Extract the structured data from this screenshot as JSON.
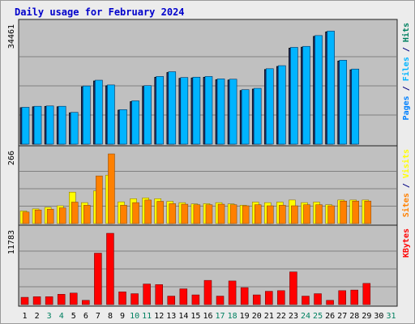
{
  "title": "Daily usage for February 2024",
  "colors": {
    "title": "#0000cc",
    "background": "#ececec",
    "plot_bg": "#c0c0c0",
    "pages": "#0080ff",
    "pages_dark": "#1a2a5a",
    "files": "#00b4ff",
    "hits": "#008060",
    "sites": "#ff8000",
    "visits": "#ffff00",
    "kbytes": "#ff0000",
    "weekend_label": "#008060"
  },
  "chart_data": {
    "type": "bar",
    "categories": [
      "1",
      "2",
      "3",
      "4",
      "5",
      "6",
      "7",
      "8",
      "9",
      "10",
      "11",
      "12",
      "13",
      "14",
      "15",
      "16",
      "17",
      "18",
      "19",
      "20",
      "21",
      "22",
      "23",
      "24",
      "25",
      "26",
      "27",
      "28",
      "29",
      "30",
      "31"
    ],
    "weekend_days": [
      "3",
      "4",
      "10",
      "11",
      "17",
      "18",
      "24",
      "25",
      "31"
    ],
    "panels": [
      {
        "id": "hits",
        "ylim": [
          0,
          34461
        ],
        "max_label": "34461",
        "legend": [
          "Pages",
          "Files",
          "Hits"
        ],
        "series": [
          {
            "name": "Hits",
            "values": [
              10800,
              11100,
              11200,
              11100,
              9300,
              17000,
              18700,
              17300,
              10100,
              12600,
              17100,
              19800,
              21200,
              19500,
              19600,
              19800,
              19100,
              19000,
              15900,
              16300,
              22100,
              23000,
              28400,
              28700,
              31900,
              33200,
              24600,
              22000,
              null,
              null,
              null
            ]
          },
          {
            "name": "Files",
            "values": [
              10900,
              11200,
              11300,
              11200,
              9400,
              17200,
              18900,
              17500,
              10200,
              12800,
              17300,
              20000,
              21400,
              19700,
              19800,
              20000,
              19300,
              19200,
              16100,
              16500,
              22300,
              23200,
              28600,
              28900,
              32100,
              33400,
              24800,
              22200,
              null,
              null,
              null
            ]
          },
          {
            "name": "Pages",
            "values": [
              10800,
              11000,
              11100,
              11000,
              9200,
              16900,
              18600,
              17200,
              10000,
              12500,
              17000,
              19700,
              21100,
              19400,
              19500,
              19700,
              19000,
              18900,
              15800,
              16200,
              22000,
              22900,
              28300,
              28600,
              31800,
              33100,
              24500,
              21900,
              null,
              null,
              null
            ]
          }
        ]
      },
      {
        "id": "visits",
        "ylim": [
          0,
          266
        ],
        "max_label": "266",
        "legend": [
          "Sites",
          "Visits"
        ],
        "series": [
          {
            "name": "Visits",
            "values": [
              48,
              56,
              62,
              68,
              120,
              80,
              125,
              185,
              83,
              95,
              98,
              95,
              85,
              80,
              75,
              76,
              80,
              75,
              70,
              82,
              80,
              82,
              90,
              80,
              82,
              72,
              90,
              90,
              90,
              null,
              null
            ]
          },
          {
            "name": "Sites",
            "values": [
              44,
              52,
              55,
              60,
              82,
              70,
              182,
              266,
              70,
              80,
              90,
              85,
              76,
              74,
              72,
              72,
              74,
              72,
              68,
              72,
              68,
              70,
              68,
              72,
              72,
              68,
              86,
              86,
              86,
              null,
              null
            ]
          }
        ]
      },
      {
        "id": "kbytes",
        "ylim": [
          0,
          11783
        ],
        "max_label": "11783",
        "legend": [
          "KBytes"
        ],
        "series": [
          {
            "name": "KBytes",
            "values": [
              1200,
              1300,
              1300,
              1700,
              1900,
              700,
              8500,
              11783,
              2100,
              1800,
              3400,
              3300,
              1400,
              2600,
              1600,
              4000,
              1400,
              3900,
              2800,
              1600,
              2200,
              2300,
              5400,
              1400,
              1800,
              700,
              2300,
              2400,
              3500,
              null,
              null
            ]
          }
        ]
      }
    ]
  }
}
